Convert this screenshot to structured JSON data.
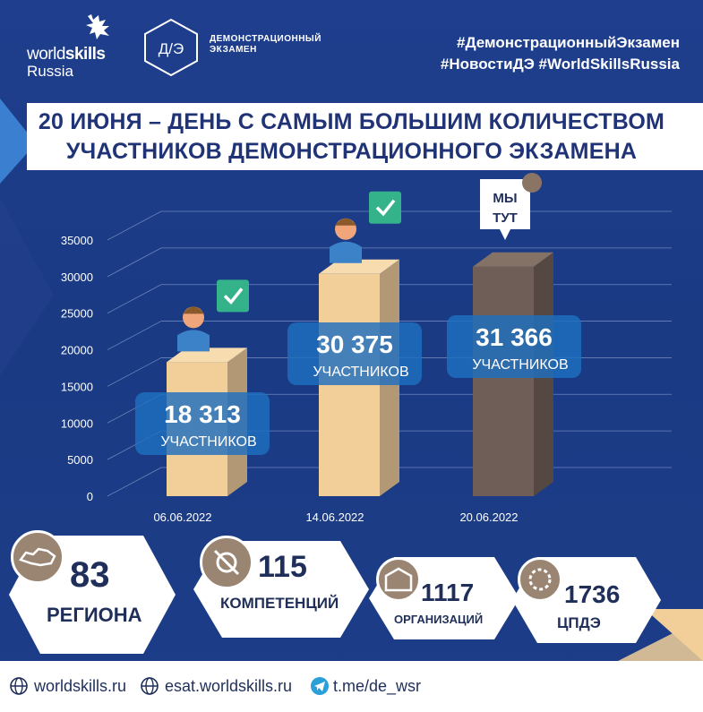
{
  "header": {
    "ws_world": "world",
    "ws_skills": "skills",
    "ws_russia": "Russia",
    "de_badge": "Д/Э",
    "de_line1": "ДЕМОНСТРАЦИОННЫЙ",
    "de_line2": "ЭКЗАМЕН",
    "hashtag_line1": "#ДемонстрационныйЭкзамен",
    "hashtag_line2": "#НовостиДЭ #WorldSkillsRussia"
  },
  "title_line1": "20 ИЮНЯ – ДЕНЬ С САМЫМ БОЛЬШИМ КОЛИЧЕСТВОМ",
  "title_line2": "УЧАСТНИКОВ ДЕМОНСТРАЦИОННОГО ЭКЗАМЕНА",
  "chart_data": {
    "type": "bar",
    "title": "",
    "xlabel": "",
    "ylabel": "",
    "ylim": [
      0,
      35000
    ],
    "yticks": [
      "0",
      "5000",
      "10000",
      "15000",
      "20000",
      "25000",
      "30000",
      "35000"
    ],
    "categories": [
      "06.06.2022",
      "14.06.2022",
      "20.06.2022"
    ],
    "values": [
      18313,
      30375,
      31366
    ],
    "value_labels": [
      "18 313",
      "30 375",
      "31 366"
    ],
    "label_unit": "УЧАСТНИКОВ",
    "callout": [
      "МЫ",
      "ТУТ"
    ],
    "grid": true,
    "colors": {
      "bar": "#f2cf98",
      "bar_side": "#b29874",
      "bar_last": "#6f5e57",
      "bar_last_side": "#554842",
      "label_box": "#1e6fc0"
    }
  },
  "stats": [
    {
      "value": "83",
      "label": "РЕГИОНА",
      "icon": "russia-map-icon"
    },
    {
      "value": "115",
      "label": "КОМПЕТЕНЦИЙ",
      "icon": "wrench-gear-icon"
    },
    {
      "value": "1117",
      "label": "ОРГАНИЗАЦИЙ",
      "icon": "building-icon"
    },
    {
      "value": "1736",
      "label": "ЦПДЭ",
      "icon": "gear-tools-icon"
    }
  ],
  "footer": {
    "link1": "worldskills.ru",
    "link2": "esat.worldskills.ru",
    "link3": "t.me/de_wsr"
  },
  "colors": {
    "background": "#1b3c86",
    "title": "#1f3376",
    "accent_beige": "#f2cf98",
    "stat_text": "#1f2f5a"
  }
}
